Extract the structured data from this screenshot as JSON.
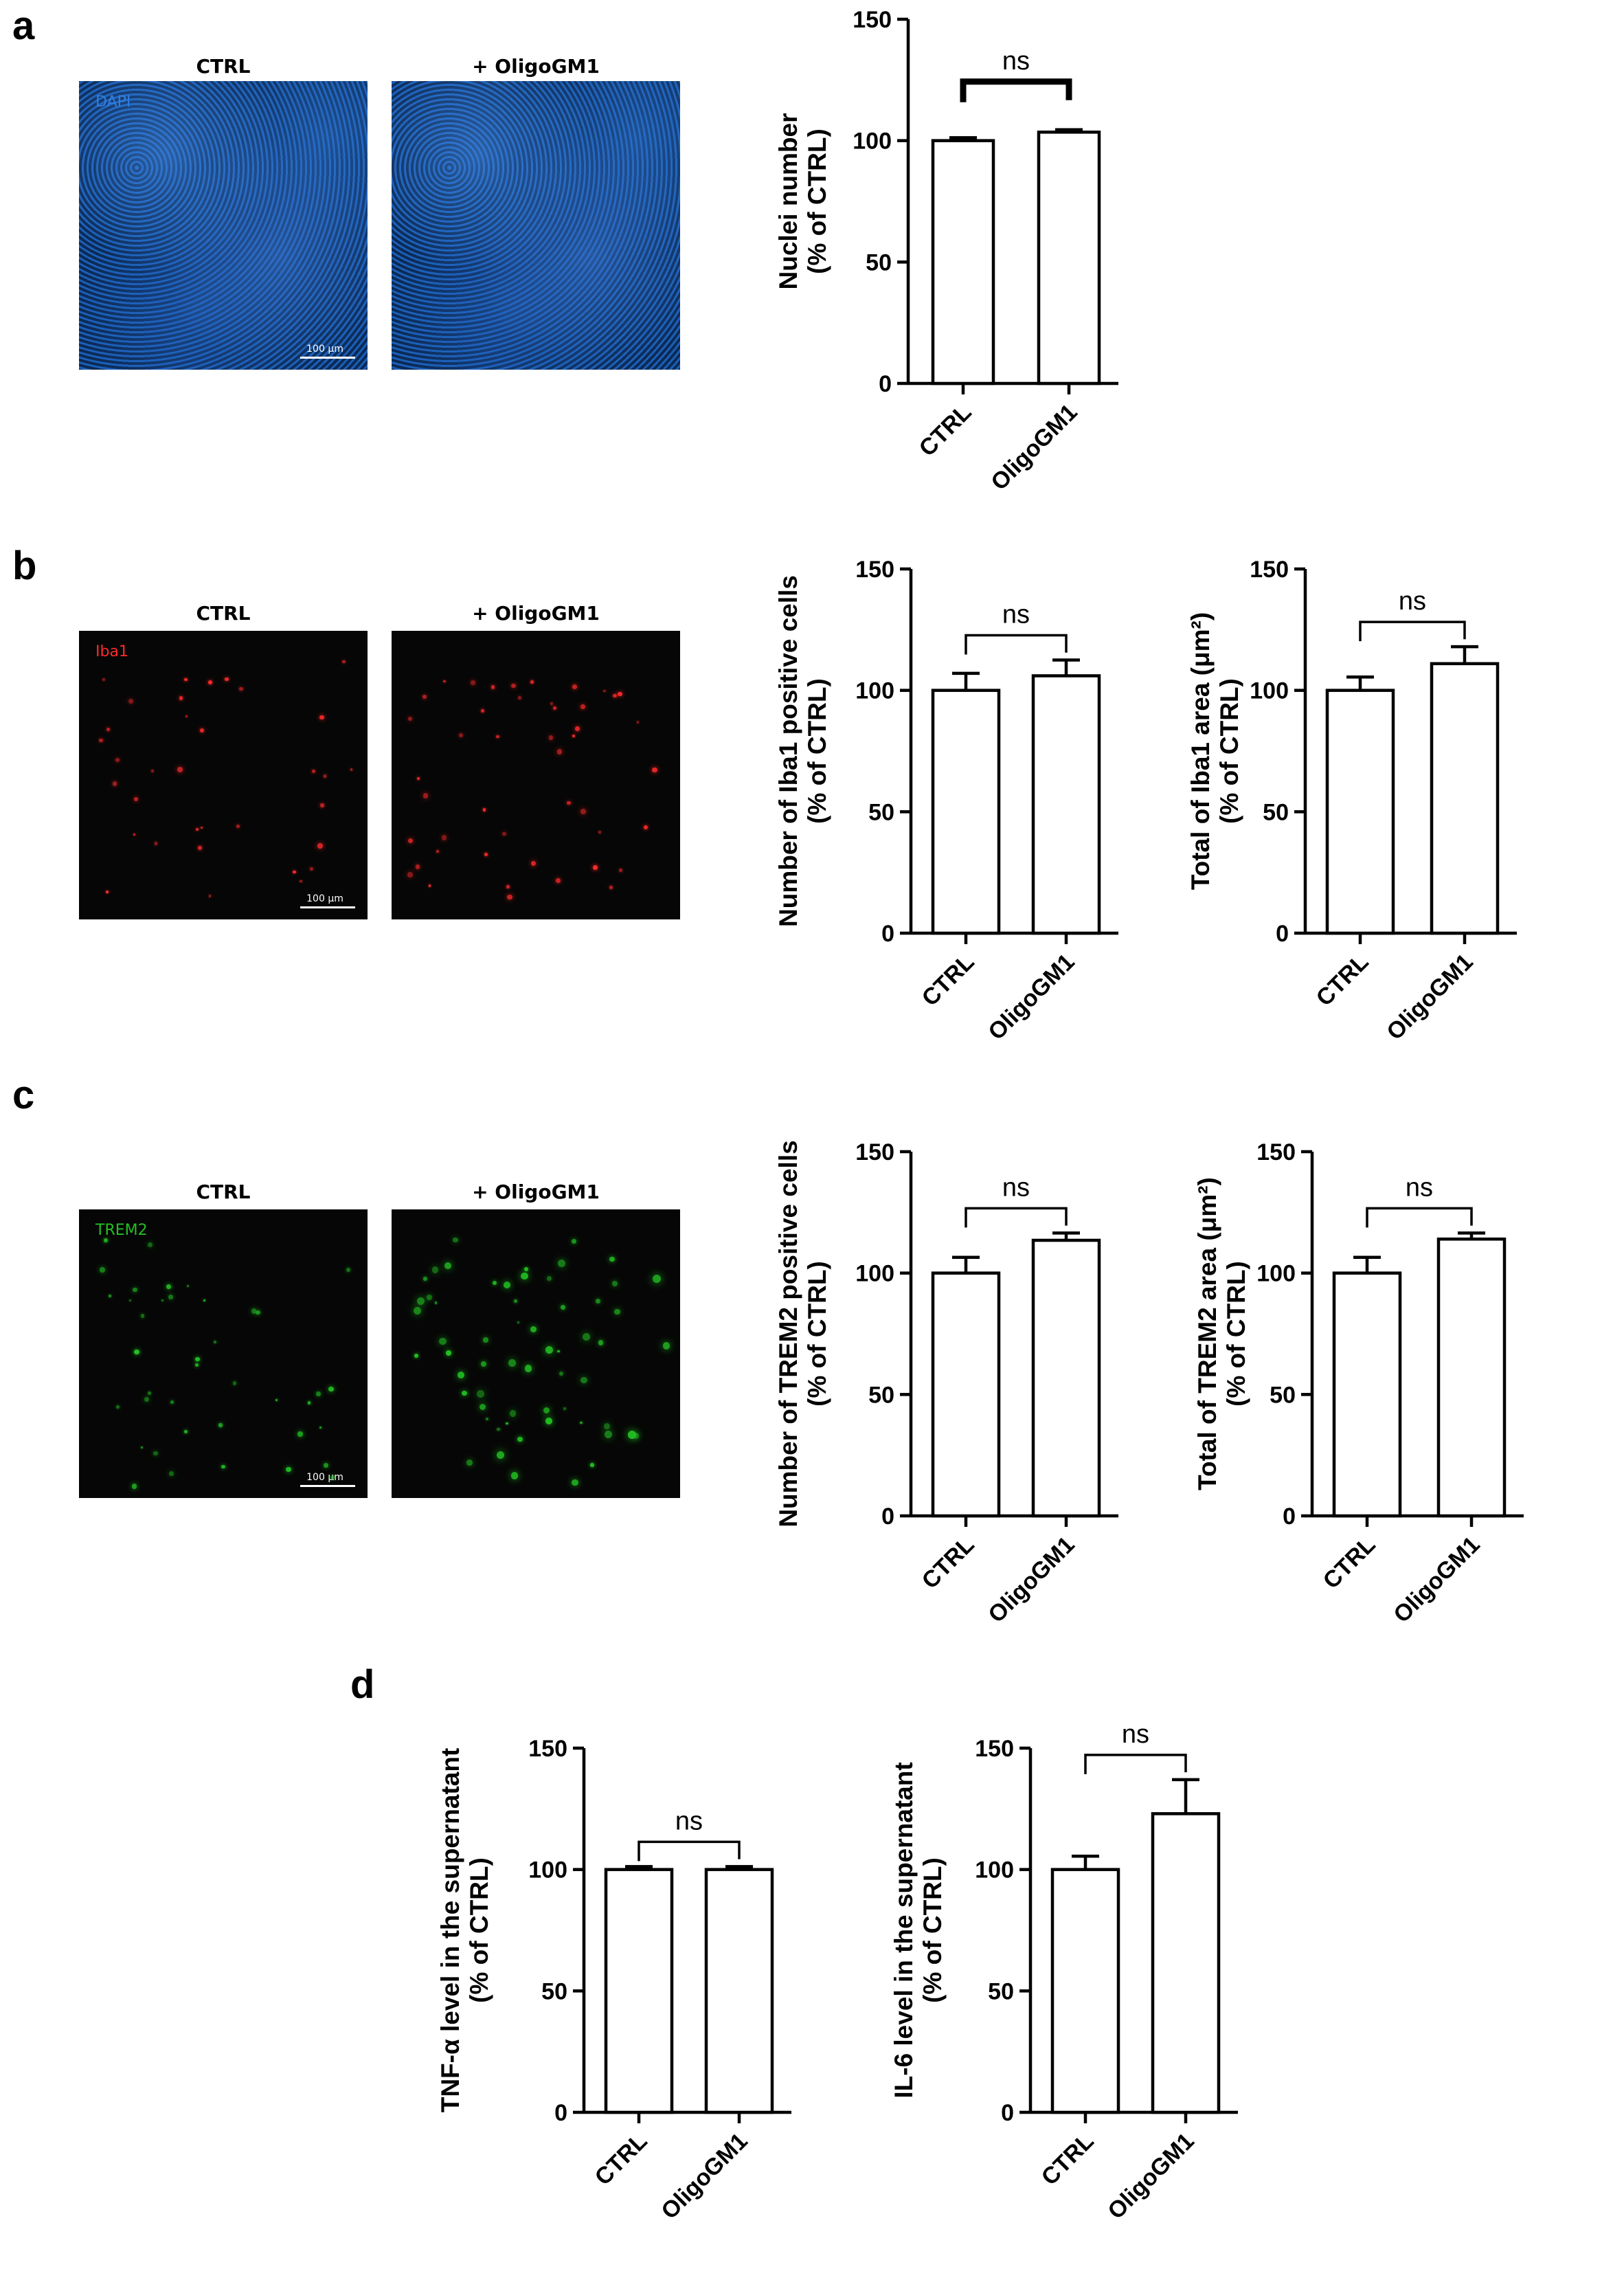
{
  "panels": {
    "a": {
      "letter": "a",
      "micro_titles": [
        "CTRL",
        "+ OligoGM1"
      ],
      "stain": "DAPI",
      "stain_color": "#2f7fe0",
      "scale_text": "100 μm"
    },
    "b": {
      "letter": "b",
      "micro_titles": [
        "CTRL",
        "+ OligoGM1"
      ],
      "stain": "Iba1",
      "stain_color": "#ff2a2a",
      "scale_text": "100 μm"
    },
    "c": {
      "letter": "c",
      "micro_titles": [
        "CTRL",
        "+ OligoGM1"
      ],
      "stain": "TREM2",
      "stain_color": "#22c022",
      "scale_text": "100 μm"
    },
    "d": {
      "letter": "d"
    }
  },
  "chart_data": [
    {
      "id": "nuclei",
      "type": "bar",
      "categories": [
        "CTRL",
        "OligoGM1"
      ],
      "values": [
        100,
        103.5
      ],
      "errors": [
        1.2,
        1.0
      ],
      "ylabel_lines": [
        "Nuclei number",
        "(% of CTRL)"
      ],
      "ylim": [
        0,
        150
      ],
      "yticks": [
        0,
        50,
        100,
        150
      ],
      "significance": "ns",
      "bracket_style": "bold"
    },
    {
      "id": "iba1-count",
      "type": "bar",
      "categories": [
        "CTRL",
        "OligoGM1"
      ],
      "values": [
        100,
        106
      ],
      "errors": [
        7,
        6.5
      ],
      "ylabel_lines": [
        "Number of Iba1 positive cells",
        "(% of CTRL)"
      ],
      "ylim": [
        0,
        150
      ],
      "yticks": [
        0,
        50,
        100,
        150
      ],
      "significance": "ns",
      "bracket_style": "thin"
    },
    {
      "id": "iba1-area",
      "type": "bar",
      "categories": [
        "CTRL",
        "OligoGM1"
      ],
      "values": [
        100,
        111
      ],
      "errors": [
        5.5,
        7
      ],
      "ylabel_lines": [
        "Total of Iba1 area (μm²)",
        "(% of CTRL)"
      ],
      "ylim": [
        0,
        150
      ],
      "yticks": [
        0,
        50,
        100,
        150
      ],
      "significance": "ns",
      "bracket_style": "thin"
    },
    {
      "id": "trem2-count",
      "type": "bar",
      "categories": [
        "CTRL",
        "OligoGM1"
      ],
      "values": [
        100,
        113.5
      ],
      "errors": [
        6.5,
        3
      ],
      "ylabel_lines": [
        "Number of TREM2 positive cells",
        "(% of CTRL)"
      ],
      "ylim": [
        0,
        150
      ],
      "yticks": [
        0,
        50,
        100,
        150
      ],
      "significance": "ns",
      "bracket_style": "thin"
    },
    {
      "id": "trem2-area",
      "type": "bar",
      "categories": [
        "CTRL",
        "OligoGM1"
      ],
      "values": [
        100,
        114
      ],
      "errors": [
        6.5,
        2.5
      ],
      "ylabel_lines": [
        "Total of TREM2 area (μm²)",
        "(% of CTRL)"
      ],
      "ylim": [
        0,
        150
      ],
      "yticks": [
        0,
        50,
        100,
        150
      ],
      "significance": "ns",
      "bracket_style": "thin"
    },
    {
      "id": "tnf",
      "type": "bar",
      "categories": [
        "CTRL",
        "OligoGM1"
      ],
      "values": [
        100,
        100
      ],
      "errors": [
        1.2,
        1.2
      ],
      "ylabel_lines": [
        "TNF-α level in the supernatant",
        "(% of CTRL)"
      ],
      "ylim": [
        0,
        150
      ],
      "yticks": [
        0,
        50,
        100,
        150
      ],
      "significance": "ns",
      "bracket_style": "thin"
    },
    {
      "id": "il6",
      "type": "bar",
      "categories": [
        "CTRL",
        "OligoGM1"
      ],
      "values": [
        100,
        123
      ],
      "errors": [
        5.5,
        14
      ],
      "ylabel_lines": [
        "IL-6 level in the supernatant",
        "(% of CTRL)"
      ],
      "ylim": [
        0,
        150
      ],
      "yticks": [
        0,
        50,
        100,
        150
      ],
      "significance": "ns",
      "bracket_style": "thin"
    }
  ]
}
